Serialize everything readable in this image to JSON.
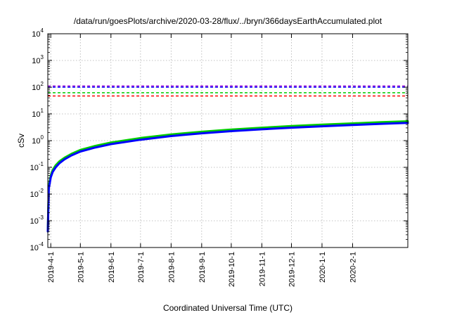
{
  "chart_data": {
    "type": "line",
    "title": "/data/run/goesPlots/archive/2020-03-28/flux/../bryn/366daysEarthAccumulated.plot",
    "xlabel": "Coordinated Universal Time (UTC)",
    "ylabel": "cSv",
    "scale_y": "log",
    "grid": true,
    "xlim": [
      "2019-03-29",
      "2020-03-28"
    ],
    "ylim": [
      0.0001,
      10000
    ],
    "x_ticks": [
      "2019-4-1",
      "2019-5-1",
      "2019-6-1",
      "2019-7-1",
      "2019-8-1",
      "2019-9-1",
      "2019-10-1",
      "2019-11-1",
      "2019-12-1",
      "2020-1-1",
      "2020-2-1"
    ],
    "y_ticks": [
      {
        "base": "10",
        "exp": "-4"
      },
      {
        "base": "10",
        "exp": "-3"
      },
      {
        "base": "10",
        "exp": "-2"
      },
      {
        "base": "10",
        "exp": "-1"
      },
      {
        "base": "10",
        "exp": "0"
      },
      {
        "base": "10",
        "exp": "1"
      },
      {
        "base": "10",
        "exp": "2"
      },
      {
        "base": "10",
        "exp": "3"
      },
      {
        "base": "10",
        "exp": "4"
      }
    ],
    "thresholds": [
      {
        "value": 110,
        "color": "#9400d3"
      },
      {
        "value": 100,
        "color": "#0000ff"
      },
      {
        "value": 62,
        "color": "#00cc00"
      },
      {
        "value": 47,
        "color": "#ff0000"
      }
    ],
    "series": [
      {
        "color": "#00cc00",
        "x": [
          "2019-03-29",
          "2019-03-30",
          "2019-04-01",
          "2019-04-03",
          "2019-04-06",
          "2019-04-10",
          "2019-04-15",
          "2019-04-22",
          "2019-05-01",
          "2019-05-15",
          "2019-06-01",
          "2019-07-01",
          "2019-08-01",
          "2019-09-01",
          "2019-10-01",
          "2019-11-01",
          "2019-12-01",
          "2020-01-01",
          "2020-02-01",
          "2020-03-01",
          "2020-03-28"
        ],
        "y": [
          0.0004,
          0.02,
          0.05,
          0.08,
          0.12,
          0.17,
          0.23,
          0.32,
          0.45,
          0.62,
          0.85,
          1.25,
          1.7,
          2.15,
          2.6,
          3.05,
          3.5,
          3.95,
          4.4,
          4.9,
          5.3
        ]
      },
      {
        "color": "#0000ff",
        "x": [
          "2019-03-29",
          "2019-03-30",
          "2019-04-01",
          "2019-04-03",
          "2019-04-06",
          "2019-04-10",
          "2019-04-15",
          "2019-04-22",
          "2019-05-01",
          "2019-05-15",
          "2019-06-01",
          "2019-07-01",
          "2019-08-01",
          "2019-09-01",
          "2019-10-01",
          "2019-11-01",
          "2019-12-01",
          "2020-01-01",
          "2020-02-01",
          "2020-03-01",
          "2020-03-28"
        ],
        "y": [
          0.0004,
          0.016,
          0.042,
          0.068,
          0.1,
          0.145,
          0.2,
          0.28,
          0.39,
          0.54,
          0.74,
          1.08,
          1.48,
          1.88,
          2.27,
          2.66,
          3.05,
          3.45,
          3.85,
          4.25,
          4.6
        ]
      }
    ]
  }
}
